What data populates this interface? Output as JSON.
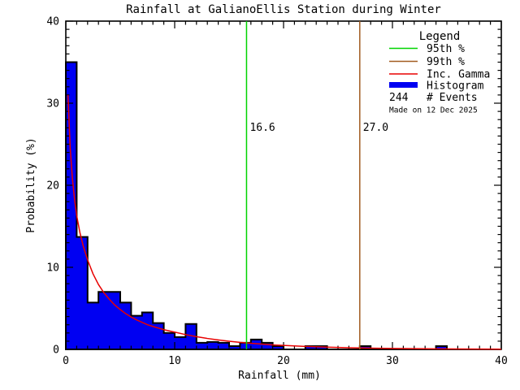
{
  "title": "Rainfall at GalianoEllis Station during Winter",
  "watermark": "Made on 12 Dec 2025",
  "axes": {
    "xlabel": "Rainfall (mm)",
    "ylabel": "Probability (%)",
    "xlim": [
      0,
      40
    ],
    "ylim": [
      0,
      40
    ],
    "xticks": [
      0,
      10,
      20,
      30,
      40
    ],
    "yticks": [
      0,
      10,
      20,
      30,
      40
    ],
    "x_minor_step": 1,
    "y_minor_step": 1
  },
  "legend": {
    "title": "Legend",
    "items": [
      {
        "label": "95th %",
        "swatch": "thin-line"
      },
      {
        "label": "99th %",
        "swatch": "thin-line"
      },
      {
        "label": "Inc. Gamma",
        "swatch": "thin-line"
      },
      {
        "label": "Histogram",
        "swatch": "thick-line"
      },
      {
        "label": "# Events",
        "swatch": "text",
        "value": "244"
      }
    ]
  },
  "annotations": {
    "p95": {
      "label": "16.6",
      "value_mm": 16.6
    },
    "p99": {
      "label": "27.0",
      "value_mm": 27.0
    }
  },
  "colors": {
    "histogram_fill": "#0000f2",
    "histogram_outline": "#000000",
    "gamma_curve": "#e80000",
    "p95_line": "#00d400",
    "p99_line": "#a15c21",
    "axis": "#000000",
    "watermark": "#c8c8c8",
    "background": "#ffffff"
  },
  "chart_data": {
    "type": "bar",
    "subtype": "histogram-with-fit-curve",
    "title": "Rainfall at GalianoEllis Station during Winter",
    "xlabel": "Rainfall (mm)",
    "ylabel": "Probability (%)",
    "xlim": [
      0,
      40
    ],
    "ylim": [
      0,
      40
    ],
    "grid": false,
    "legend_position": "top-right-inside",
    "n_events": 244,
    "bin_width_mm": 1,
    "bins_start_mm": 0,
    "bar_heights_percent": [
      35.0,
      13.7,
      5.7,
      7.0,
      7.0,
      5.7,
      4.1,
      4.5,
      3.2,
      2.0,
      1.5,
      3.1,
      0.8,
      0.9,
      0.8,
      0.4,
      0.8,
      1.2,
      0.8,
      0.4,
      0,
      0,
      0.4,
      0.4,
      0,
      0,
      0,
      0.4,
      0,
      0,
      0,
      0,
      0,
      0,
      0.4,
      0,
      0,
      0,
      0,
      0
    ],
    "percentile_95_mm": 16.6,
    "percentile_99_mm": 27.0,
    "gamma_fit_curve": {
      "x_mm": [
        0.2,
        0.4,
        0.6,
        0.8,
        1.0,
        1.3,
        1.6,
        2.0,
        2.5,
        3.0,
        3.5,
        4.0,
        4.5,
        5.0,
        5.5,
        6.0,
        6.5,
        7.0,
        7.5,
        8.0,
        8.5,
        9.0,
        9.5,
        10,
        11,
        12,
        13,
        14,
        15,
        16,
        17,
        18,
        19,
        20,
        22,
        24,
        26,
        28,
        30,
        32,
        34,
        36,
        38,
        40
      ],
      "y_percent": [
        31.0,
        24.6,
        20.9,
        18.3,
        16.3,
        14.2,
        12.6,
        10.9,
        9.2,
        7.9,
        6.9,
        6.1,
        5.4,
        4.85,
        4.35,
        3.95,
        3.6,
        3.3,
        3.0,
        2.8,
        2.6,
        2.4,
        2.25,
        2.1,
        1.8,
        1.55,
        1.33,
        1.15,
        0.99,
        0.85,
        0.74,
        0.64,
        0.55,
        0.48,
        0.36,
        0.27,
        0.2,
        0.15,
        0.11,
        0.085,
        0.065,
        0.05,
        0.04,
        0.03
      ]
    }
  }
}
